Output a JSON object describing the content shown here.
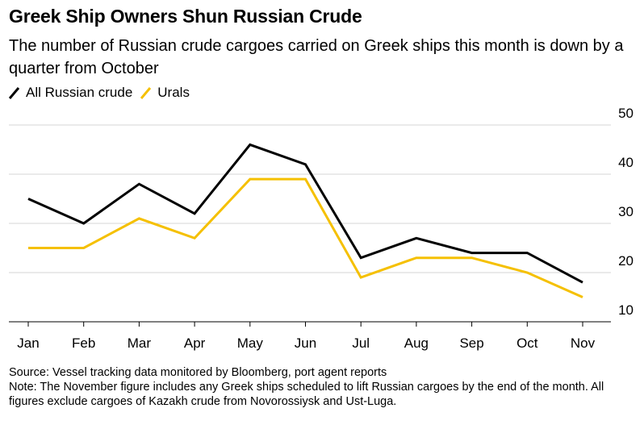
{
  "title": "Greek Ship Owners Shun Russian Crude",
  "subtitle": "The number of Russian crude cargoes carried on Greek ships this month is down by a quarter from October",
  "legend": [
    {
      "label": "All Russian crude",
      "color": "#000000"
    },
    {
      "label": "Urals",
      "color": "#f5c000"
    }
  ],
  "source": "Source: Vessel tracking data monitored by Bloomberg, port agent reports",
  "note": "Note: The November figure includes any Greek ships scheduled to lift Russian cargoes by the end of the month. All figures exclude cargoes of Kazakh crude from Novorossiysk and Ust-Luga.",
  "chart_data": {
    "type": "line",
    "categories": [
      "Jan",
      "Feb",
      "Mar",
      "Apr",
      "May",
      "Jun",
      "Jul",
      "Aug",
      "Sep",
      "Oct",
      "Nov"
    ],
    "series": [
      {
        "name": "All Russian crude",
        "color": "#000000",
        "values": [
          35,
          30,
          38,
          32,
          46,
          42,
          23,
          27,
          24,
          24,
          18
        ]
      },
      {
        "name": "Urals",
        "color": "#f5c000",
        "values": [
          25,
          25,
          31,
          27,
          39,
          39,
          19,
          23,
          23,
          20,
          15
        ]
      }
    ],
    "yticks": [
      10,
      20,
      30,
      40,
      50
    ],
    "ylim": [
      10,
      50
    ],
    "y_axis_side": "right",
    "grid": true,
    "legend_position": "top-left"
  }
}
